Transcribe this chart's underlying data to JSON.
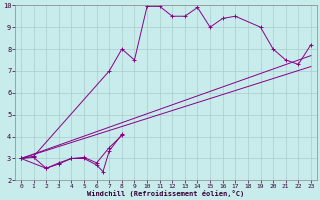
{
  "xlabel": "Windchill (Refroidissement éolien,°C)",
  "background_color": "#c8ecec",
  "line_color": "#880088",
  "grid_color": "#aacccc",
  "xlim": [
    -0.5,
    23.5
  ],
  "ylim": [
    2,
    10
  ],
  "xticks": [
    0,
    1,
    2,
    3,
    4,
    5,
    6,
    7,
    8,
    9,
    10,
    11,
    12,
    13,
    14,
    15,
    16,
    17,
    18,
    19,
    20,
    21,
    22,
    23
  ],
  "yticks": [
    2,
    3,
    4,
    5,
    6,
    7,
    8,
    9,
    10
  ],
  "line1_x": [
    0,
    1,
    2,
    3,
    4,
    5,
    6,
    7,
    8
  ],
  "line1_y": [
    3.0,
    3.05,
    2.55,
    2.8,
    3.0,
    3.05,
    2.8,
    3.5,
    4.05
  ],
  "line2_x": [
    0,
    2,
    3,
    4,
    5,
    6,
    6.5,
    7,
    8
  ],
  "line2_y": [
    3.0,
    2.55,
    2.75,
    3.0,
    3.0,
    2.7,
    2.4,
    3.35,
    4.1
  ],
  "line3_x": [
    0,
    1,
    7,
    8,
    9,
    10,
    11,
    12,
    13,
    14,
    15,
    16,
    17,
    19,
    20,
    21,
    22,
    23
  ],
  "line3_y": [
    3.0,
    3.1,
    7.0,
    8.0,
    7.5,
    9.95,
    9.95,
    9.5,
    9.5,
    9.9,
    9.0,
    9.4,
    9.5,
    9.0,
    8.0,
    7.5,
    7.3,
    8.2
  ],
  "line4_x": [
    0,
    23
  ],
  "line4_y": [
    3.0,
    7.2
  ],
  "line5_x": [
    0,
    23
  ],
  "line5_y": [
    3.0,
    7.7
  ]
}
